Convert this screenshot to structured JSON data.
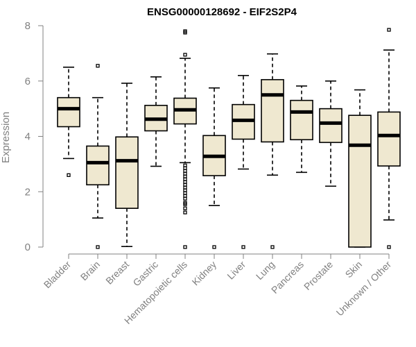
{
  "chart_data": {
    "type": "boxplot",
    "title": "ENSG00000128692 - EIF2S2P4",
    "ylabel": "Expression",
    "xlabel": "",
    "ylim": [
      0,
      8
    ],
    "yticks": [
      0,
      2,
      4,
      6,
      8
    ],
    "grid": false,
    "categories": [
      "Bladder",
      "Brain",
      "Breast",
      "Gastric",
      "Hematopoietic cells",
      "Kidney",
      "Liver",
      "Lung",
      "Pancreas",
      "Prostate",
      "Skin",
      "Unknown / Other"
    ],
    "boxes": [
      {
        "min": 3.2,
        "q1": 4.35,
        "median": 5.0,
        "q3": 5.4,
        "max": 6.5,
        "outliers": [
          2.6
        ]
      },
      {
        "min": 1.05,
        "q1": 2.25,
        "median": 3.05,
        "q3": 3.65,
        "max": 5.4,
        "outliers": [
          0,
          6.55
        ]
      },
      {
        "min": 0.02,
        "q1": 1.4,
        "median": 3.12,
        "q3": 3.98,
        "max": 5.92,
        "outliers": []
      },
      {
        "min": 2.92,
        "q1": 4.2,
        "median": 4.62,
        "q3": 5.12,
        "max": 6.15,
        "outliers": []
      },
      {
        "min": 3.05,
        "q1": 4.45,
        "median": 4.96,
        "q3": 5.38,
        "max": 6.82,
        "outliers": [
          0,
          1.25,
          1.4,
          1.55,
          1.6,
          1.75,
          1.85,
          1.95,
          2.05,
          2.15,
          2.25,
          2.35,
          2.45,
          2.55,
          2.65,
          2.75,
          2.85,
          2.95,
          6.95,
          7.75,
          7.8
        ]
      },
      {
        "min": 1.5,
        "q1": 2.58,
        "median": 3.28,
        "q3": 4.03,
        "max": 5.75,
        "outliers": [
          0
        ]
      },
      {
        "min": 2.82,
        "q1": 3.9,
        "median": 4.58,
        "q3": 5.15,
        "max": 6.2,
        "outliers": [
          0
        ]
      },
      {
        "min": 2.6,
        "q1": 3.8,
        "median": 5.5,
        "q3": 6.05,
        "max": 6.98,
        "outliers": [
          0
        ]
      },
      {
        "min": 2.7,
        "q1": 3.88,
        "median": 4.88,
        "q3": 5.3,
        "max": 5.82,
        "outliers": []
      },
      {
        "min": 2.2,
        "q1": 3.78,
        "median": 4.48,
        "q3": 5.0,
        "max": 6.0,
        "outliers": []
      },
      {
        "min": 0.0,
        "q1": 0.0,
        "median": 3.68,
        "q3": 4.76,
        "max": 5.68,
        "outliers": []
      },
      {
        "min": 0.98,
        "q1": 2.93,
        "median": 4.03,
        "q3": 4.88,
        "max": 7.12,
        "outliers": [
          0,
          7.85
        ]
      }
    ],
    "colors": {
      "box_fill": "#efe8d0",
      "stroke": "#000000",
      "axis": "#808080"
    }
  }
}
